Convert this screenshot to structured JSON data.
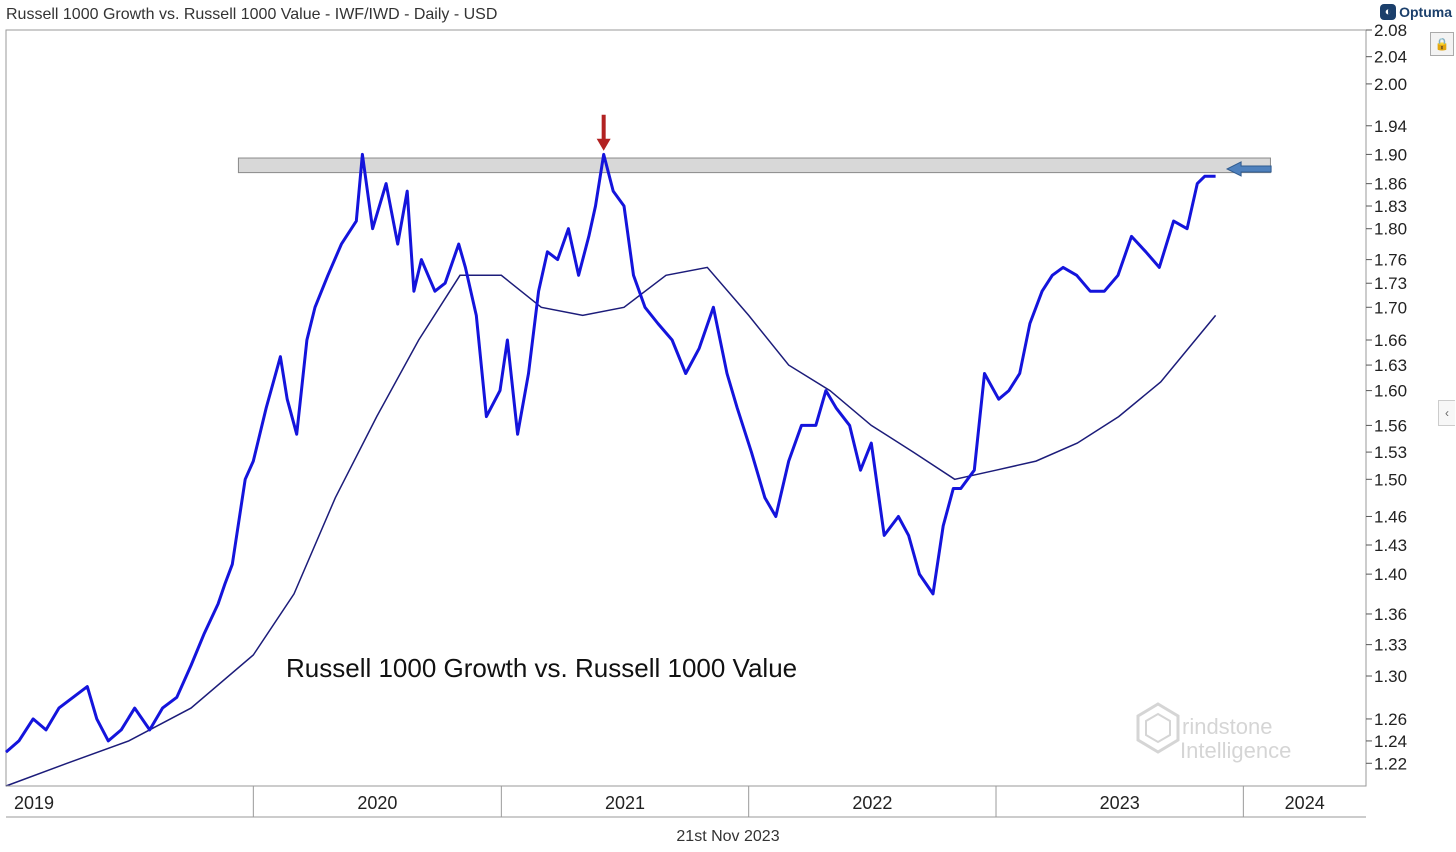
{
  "header": {
    "title": "Russell 1000 Growth vs. Russell 1000 Value - IWF/IWD - Daily - USD",
    "brand": "Optuma"
  },
  "footer": {
    "date": "21st Nov 2023"
  },
  "watermark": {
    "line1": "rindstone",
    "line2": "Intelligence"
  },
  "icons": {
    "lock": "lock-icon",
    "collapse": "chevron-left-icon",
    "brand": "optuma-logo-icon"
  },
  "colors": {
    "price": "#1414dc",
    "ma": "#1c1c7a",
    "band": "#d4d4d4",
    "arrow_red": "#b22222",
    "arrow_blue": "#4f81bd"
  },
  "chart_data": {
    "type": "line",
    "y_scale": "log",
    "ylim": [
      1.2,
      2.08
    ],
    "yticks": [
      1.22,
      1.24,
      1.26,
      1.3,
      1.33,
      1.36,
      1.4,
      1.43,
      1.46,
      1.5,
      1.53,
      1.56,
      1.6,
      1.63,
      1.66,
      1.7,
      1.73,
      1.76,
      1.8,
      1.83,
      1.86,
      1.9,
      1.94,
      2.0,
      2.04,
      2.08
    ],
    "xlim": [
      "2019-01-01",
      "2024-06-30"
    ],
    "x_tick_labels": [
      "2019",
      "2020",
      "2021",
      "2022",
      "2023",
      "2024"
    ],
    "x_tick_dates": [
      "2019-01-01",
      "2020-01-01",
      "2021-01-01",
      "2022-01-01",
      "2023-01-01",
      "2024-01-01"
    ],
    "annotation": "Russell 1000 Growth vs. Russell 1000 Value",
    "resistance_band": {
      "from": "2019-12-10",
      "to": "2024-02-10",
      "low": 1.875,
      "high": 1.895
    },
    "markers": [
      {
        "kind": "down-arrow",
        "date": "2021-06-01",
        "value": 1.905,
        "color": "#b22222"
      },
      {
        "kind": "left-arrow",
        "date": "2023-12-08",
        "value": 1.88,
        "color": "#4f81bd"
      }
    ],
    "series": [
      {
        "kind": "price",
        "x": [
          "2019-01-01",
          "2019-01-20",
          "2019-02-10",
          "2019-03-01",
          "2019-03-20",
          "2019-04-10",
          "2019-05-01",
          "2019-05-15",
          "2019-06-01",
          "2019-06-20",
          "2019-07-10",
          "2019-08-01",
          "2019-08-20",
          "2019-09-10",
          "2019-10-01",
          "2019-10-20",
          "2019-11-10",
          "2019-11-20",
          "2019-12-01",
          "2019-12-20",
          "2020-01-01",
          "2020-01-20",
          "2020-02-10",
          "2020-02-20",
          "2020-03-05",
          "2020-03-20",
          "2020-04-01",
          "2020-04-20",
          "2020-05-10",
          "2020-06-01",
          "2020-06-10",
          "2020-06-25",
          "2020-07-15",
          "2020-08-01",
          "2020-08-15",
          "2020-08-25",
          "2020-09-05",
          "2020-09-25",
          "2020-10-10",
          "2020-10-30",
          "2020-11-09",
          "2020-11-25",
          "2020-12-10",
          "2020-12-30",
          "2021-01-10",
          "2021-01-25",
          "2021-02-10",
          "2021-02-25",
          "2021-03-10",
          "2021-03-25",
          "2021-04-10",
          "2021-04-25",
          "2021-05-10",
          "2021-05-20",
          "2021-06-01",
          "2021-06-15",
          "2021-07-01",
          "2021-07-15",
          "2021-08-01",
          "2021-08-20",
          "2021-09-10",
          "2021-09-30",
          "2021-10-20",
          "2021-11-10",
          "2021-11-30",
          "2021-12-15",
          "2022-01-05",
          "2022-01-25",
          "2022-02-10",
          "2022-03-01",
          "2022-03-20",
          "2022-04-10",
          "2022-04-25",
          "2022-05-10",
          "2022-05-30",
          "2022-06-15",
          "2022-07-01",
          "2022-07-20",
          "2022-08-10",
          "2022-08-25",
          "2022-09-10",
          "2022-09-30",
          "2022-10-15",
          "2022-10-30",
          "2022-11-10",
          "2022-11-30",
          "2022-12-15",
          "2023-01-05",
          "2023-01-20",
          "2023-02-05",
          "2023-02-20",
          "2023-03-10",
          "2023-03-25",
          "2023-04-10",
          "2023-04-30",
          "2023-05-20",
          "2023-06-10",
          "2023-06-30",
          "2023-07-20",
          "2023-08-10",
          "2023-08-30",
          "2023-09-20",
          "2023-10-10",
          "2023-10-25",
          "2023-11-05",
          "2023-11-21"
        ],
        "y": [
          1.23,
          1.24,
          1.26,
          1.25,
          1.27,
          1.28,
          1.29,
          1.26,
          1.24,
          1.25,
          1.27,
          1.25,
          1.27,
          1.28,
          1.31,
          1.34,
          1.37,
          1.39,
          1.41,
          1.5,
          1.52,
          1.58,
          1.64,
          1.59,
          1.55,
          1.66,
          1.7,
          1.74,
          1.78,
          1.81,
          1.9,
          1.8,
          1.86,
          1.78,
          1.85,
          1.72,
          1.76,
          1.72,
          1.73,
          1.78,
          1.75,
          1.69,
          1.57,
          1.6,
          1.66,
          1.55,
          1.62,
          1.72,
          1.77,
          1.76,
          1.8,
          1.74,
          1.79,
          1.83,
          1.9,
          1.85,
          1.83,
          1.74,
          1.7,
          1.68,
          1.66,
          1.62,
          1.65,
          1.7,
          1.62,
          1.58,
          1.53,
          1.48,
          1.46,
          1.52,
          1.56,
          1.56,
          1.6,
          1.58,
          1.56,
          1.51,
          1.54,
          1.44,
          1.46,
          1.44,
          1.4,
          1.38,
          1.45,
          1.49,
          1.49,
          1.51,
          1.62,
          1.59,
          1.6,
          1.62,
          1.68,
          1.72,
          1.74,
          1.75,
          1.74,
          1.72,
          1.72,
          1.74,
          1.79,
          1.77,
          1.75,
          1.81,
          1.8,
          1.86,
          1.87,
          1.87
        ]
      },
      {
        "kind": "moving-average",
        "x": [
          "2019-01-01",
          "2019-04-01",
          "2019-07-01",
          "2019-10-01",
          "2020-01-01",
          "2020-03-01",
          "2020-05-01",
          "2020-07-01",
          "2020-09-01",
          "2020-11-01",
          "2021-01-01",
          "2021-03-01",
          "2021-05-01",
          "2021-07-01",
          "2021-09-01",
          "2021-11-01",
          "2022-01-01",
          "2022-03-01",
          "2022-05-01",
          "2022-07-01",
          "2022-09-01",
          "2022-11-01",
          "2023-01-01",
          "2023-03-01",
          "2023-05-01",
          "2023-07-01",
          "2023-09-01",
          "2023-11-21"
        ],
        "y": [
          1.2,
          1.22,
          1.24,
          1.27,
          1.32,
          1.38,
          1.48,
          1.57,
          1.66,
          1.74,
          1.74,
          1.7,
          1.69,
          1.7,
          1.74,
          1.75,
          1.69,
          1.63,
          1.6,
          1.56,
          1.53,
          1.5,
          1.51,
          1.52,
          1.54,
          1.57,
          1.61,
          1.69
        ]
      }
    ]
  }
}
